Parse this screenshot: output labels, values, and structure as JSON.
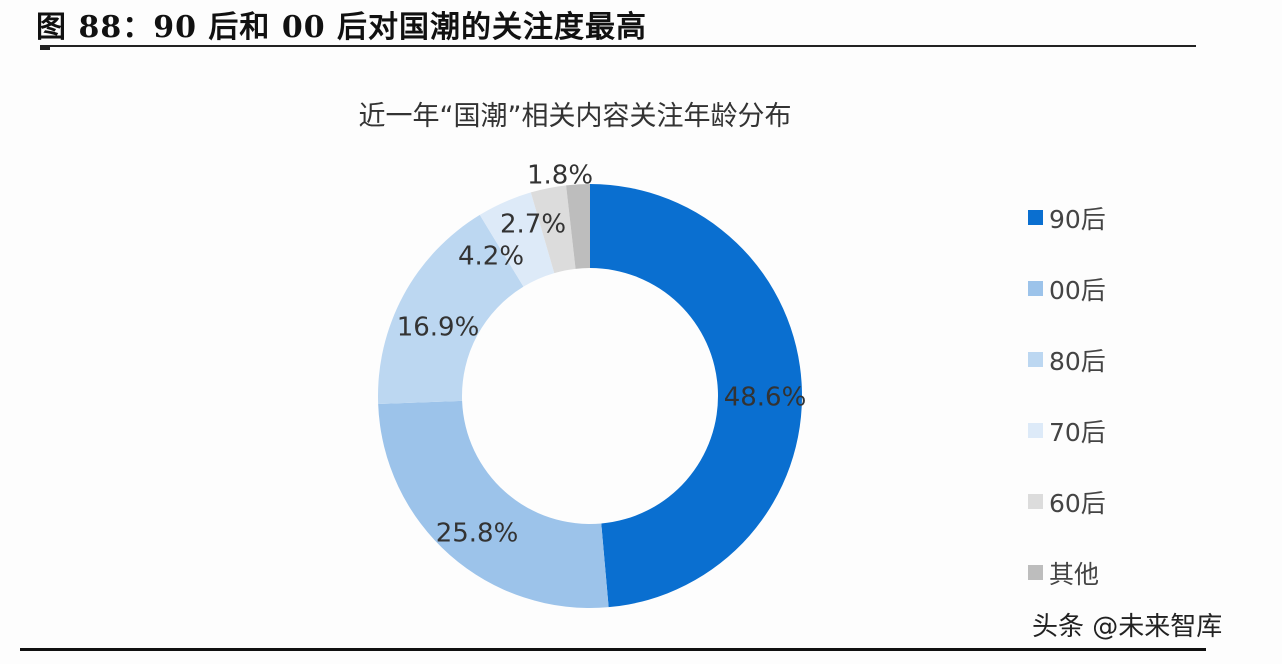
{
  "figure": {
    "title": "图 88：90 后和 00 后对国潮的关注度最高"
  },
  "watermark": "头条 @未来智库",
  "chart_data": {
    "type": "pie",
    "subtype": "donut",
    "title": "近一年“国潮”相关内容关注年龄分布",
    "categories": [
      "90后",
      "00后",
      "80后",
      "70后",
      "60后",
      "其他"
    ],
    "values": [
      48.6,
      25.8,
      16.9,
      4.2,
      2.7,
      1.8
    ],
    "unit": "%",
    "labels": [
      "48.6%",
      "25.8%",
      "16.9%",
      "4.2%",
      "2.7%",
      "1.8%"
    ],
    "colors": [
      "#0a6fd0",
      "#9cc3ea",
      "#bcd7f1",
      "#ddeaf8",
      "#dcdcdc",
      "#bdbdbd"
    ],
    "legend_position": "right",
    "start_angle_deg": 0,
    "direction": "clockwise"
  },
  "legend": [
    {
      "label": "90后",
      "color": "#0a6fd0"
    },
    {
      "label": "00后",
      "color": "#9cc3ea"
    },
    {
      "label": "80后",
      "color": "#bcd7f1"
    },
    {
      "label": "70后",
      "color": "#ddeaf8"
    },
    {
      "label": "60后",
      "color": "#dcdcdc"
    },
    {
      "label": "其他",
      "color": "#bdbdbd"
    }
  ]
}
